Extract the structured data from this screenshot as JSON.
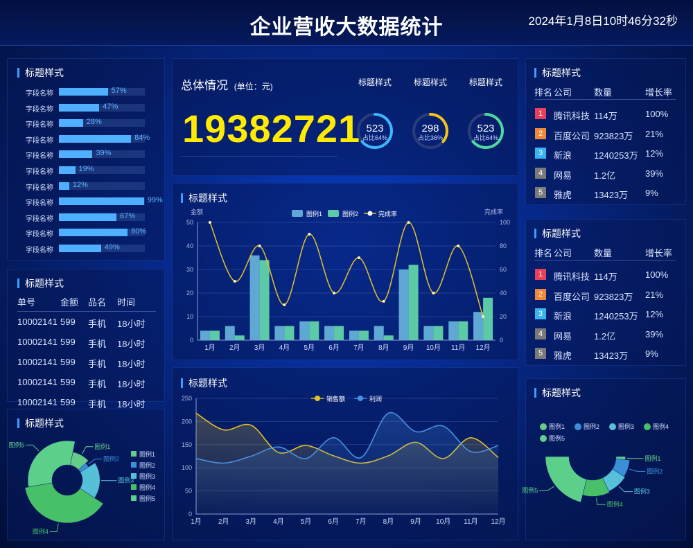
{
  "header": {
    "title": "企业营收大数据统计",
    "datetime": "2024年1月8日10时46分32秒"
  },
  "panel_bars": {
    "title": "标题样式",
    "rows": [
      {
        "label": "字段名称",
        "value": 57,
        "text": "57%"
      },
      {
        "label": "字段名称",
        "value": 47,
        "text": "47%"
      },
      {
        "label": "字段名称",
        "value": 28,
        "text": "28%"
      },
      {
        "label": "字段名称",
        "value": 84,
        "text": "84%"
      },
      {
        "label": "字段名称",
        "value": 39,
        "text": "39%"
      },
      {
        "label": "字段名称",
        "value": 19,
        "text": "19%"
      },
      {
        "label": "字段名称",
        "value": 12,
        "text": "12%"
      },
      {
        "label": "字段名称",
        "value": 99,
        "text": "99%"
      },
      {
        "label": "字段名称",
        "value": 67,
        "text": "67%"
      },
      {
        "label": "字段名称",
        "value": 80,
        "text": "80%"
      },
      {
        "label": "字段名称",
        "value": 49,
        "text": "49%"
      }
    ]
  },
  "panel_orders": {
    "title": "标题样式",
    "headers": [
      "单号",
      "金额",
      "品名",
      "时间"
    ],
    "rows": [
      [
        "10002141",
        "599",
        "手机",
        "18小时"
      ],
      [
        "10002141",
        "599",
        "手机",
        "18小时"
      ],
      [
        "10002141",
        "599",
        "手机",
        "18小时"
      ],
      [
        "10002141",
        "599",
        "手机",
        "18小时"
      ],
      [
        "10002141",
        "599",
        "手机",
        "18小时"
      ]
    ]
  },
  "panel_overview": {
    "title": "总体情况",
    "unit": "(单位：元)",
    "total": "19382721",
    "gauges": [
      {
        "title": "标题样式",
        "value": "523",
        "ratio_text": "占比64%",
        "ratio": 0.64,
        "color": "#3bb6ff"
      },
      {
        "title": "标题样式",
        "value": "298",
        "ratio_text": "占比36%",
        "ratio": 0.36,
        "color": "#f5c518"
      },
      {
        "title": "标题样式",
        "value": "523",
        "ratio_text": "占比64%",
        "ratio": 0.64,
        "color": "#4cd9a0"
      }
    ]
  },
  "panel_rank1": {
    "title": "标题样式",
    "headers": [
      "排名",
      "公司",
      "数量",
      "增长率"
    ],
    "rows": [
      {
        "rank": "1",
        "company": "腾讯科技",
        "amount": "114万",
        "rate": "100%",
        "color": "#e8405a"
      },
      {
        "rank": "2",
        "company": "百度公司",
        "amount": "923823万",
        "rate": "21%",
        "color": "#f0883a"
      },
      {
        "rank": "3",
        "company": "新浪",
        "amount": "1240253万",
        "rate": "12%",
        "color": "#38b4f0"
      },
      {
        "rank": "4",
        "company": "网易",
        "amount": "1.2亿",
        "rate": "39%",
        "color": "#7a7a7a"
      },
      {
        "rank": "5",
        "company": "雅虎",
        "amount": "13423万",
        "rate": "9%",
        "color": "#7a7a7a"
      }
    ]
  },
  "panel_rank2": {
    "title": "标题样式",
    "headers": [
      "排名",
      "公司",
      "数量",
      "增长率"
    ],
    "rows": [
      {
        "rank": "1",
        "company": "腾讯科技",
        "amount": "114万",
        "rate": "100%",
        "color": "#e8405a"
      },
      {
        "rank": "2",
        "company": "百度公司",
        "amount": "923823万",
        "rate": "21%",
        "color": "#f0883a"
      },
      {
        "rank": "3",
        "company": "新浪",
        "amount": "1240253万",
        "rate": "12%",
        "color": "#38b4f0"
      },
      {
        "rank": "4",
        "company": "网易",
        "amount": "1.2亿",
        "rate": "39%",
        "color": "#7a7a7a"
      },
      {
        "rank": "5",
        "company": "雅虎",
        "amount": "13423万",
        "rate": "9%",
        "color": "#7a7a7a"
      }
    ]
  },
  "chart_data": [
    {
      "id": "bar_line",
      "type": "bar",
      "title": "标题样式",
      "ylabel": "金额",
      "y2label": "完成率",
      "categories": [
        "1月",
        "2月",
        "3月",
        "4月",
        "5月",
        "6月",
        "7月",
        "8月",
        "9月",
        "10月",
        "11月",
        "12月"
      ],
      "ylim": [
        0,
        50
      ],
      "y2lim": [
        0,
        100
      ],
      "yticks": [
        0,
        10,
        20,
        30,
        40,
        50
      ],
      "y2ticks": [
        0,
        20,
        40,
        60,
        80,
        100
      ],
      "series": [
        {
          "name": "图例1",
          "kind": "bar",
          "color": "#5fa8d3",
          "values": [
            4,
            6,
            36,
            6,
            8,
            6,
            4,
            6,
            30,
            6,
            8,
            12
          ]
        },
        {
          "name": "图例2",
          "kind": "bar",
          "color": "#5cc9a7",
          "values": [
            4,
            2,
            34,
            6,
            8,
            6,
            4,
            2,
            32,
            6,
            8,
            18
          ]
        },
        {
          "name": "完成率",
          "kind": "line",
          "axis": "right",
          "color": "#e6c229",
          "values": [
            100,
            50,
            80,
            30,
            90,
            40,
            70,
            33,
            100,
            40,
            80,
            20
          ]
        }
      ]
    },
    {
      "id": "area",
      "type": "area",
      "title": "标题样式",
      "categories": [
        "1月",
        "2月",
        "3月",
        "4月",
        "5月",
        "6月",
        "7月",
        "8月",
        "9月",
        "10月",
        "11月",
        "12月"
      ],
      "ylim": [
        0,
        250
      ],
      "yticks": [
        0,
        50,
        100,
        150,
        200,
        250
      ],
      "series": [
        {
          "name": "销售额",
          "color": "#e6c229",
          "values": [
            218,
            182,
            192,
            133,
            148,
            126,
            110,
            126,
            155,
            120,
            165,
            122
          ]
        },
        {
          "name": "利润",
          "color": "#4a90e2",
          "values": [
            120,
            110,
            125,
            145,
            120,
            165,
            122,
            218,
            178,
            190,
            135,
            148
          ]
        }
      ]
    },
    {
      "id": "pie_left",
      "type": "pie",
      "title": "标题样式",
      "legend": [
        "图例1",
        "图例2",
        "图例3",
        "图例4",
        "图例5"
      ],
      "colors": [
        "#66cc88",
        "#3a8fd8",
        "#56c0d8",
        "#48c068",
        "#5ccf8a"
      ],
      "values": [
        10,
        3,
        18,
        38,
        31
      ]
    },
    {
      "id": "pie_right",
      "type": "pie",
      "title": "标题样式",
      "legend": [
        "图例1",
        "图例2",
        "图例3",
        "图例4",
        "图例5"
      ],
      "colors": [
        "#66cc88",
        "#3a8fd8",
        "#56c0d8",
        "#48c068",
        "#5ccf8a"
      ],
      "values": [
        3,
        15,
        18,
        22,
        42
      ]
    }
  ]
}
